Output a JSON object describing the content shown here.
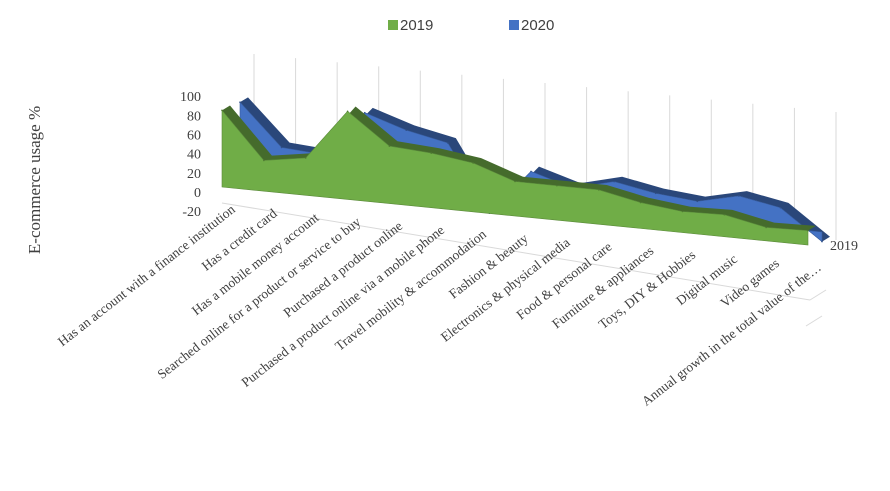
{
  "chart_data": {
    "type": "area",
    "view": "3d",
    "ylabel": "E-commerce usage %",
    "ylim": [
      -20,
      100
    ],
    "yticks": [
      100,
      80,
      60,
      40,
      20,
      0,
      -20
    ],
    "depth_axis_label": "2019",
    "legend_position": "top",
    "categories": [
      "Has an account with a finance institution",
      "Has a credit card",
      "Has a mobile money account",
      "Searched online for a product or service to buy",
      "Purchased a product online",
      "Purchased a product online via a mobile phone",
      "Travel mobility & accommodation",
      "Fashion & beauty",
      "Electronics & physical media",
      "Food & personal care",
      "Furniture & appliances",
      "Toys, DIY & Hobbies",
      "Digital music",
      "Video games",
      "Annual growth in the total value of the…"
    ],
    "series": [
      {
        "name": "2019",
        "color": "#70ad47",
        "values": [
          80,
          32,
          39,
          92,
          60,
          57,
          51,
          36,
          36,
          36,
          27,
          22,
          23,
          14,
          15
        ]
      },
      {
        "name": "2020",
        "color": "#4472c4",
        "values": [
          75,
          32,
          29,
          77,
          63,
          54,
          -15,
          33,
          20,
          31,
          23,
          19,
          29,
          21,
          -10
        ]
      }
    ]
  }
}
